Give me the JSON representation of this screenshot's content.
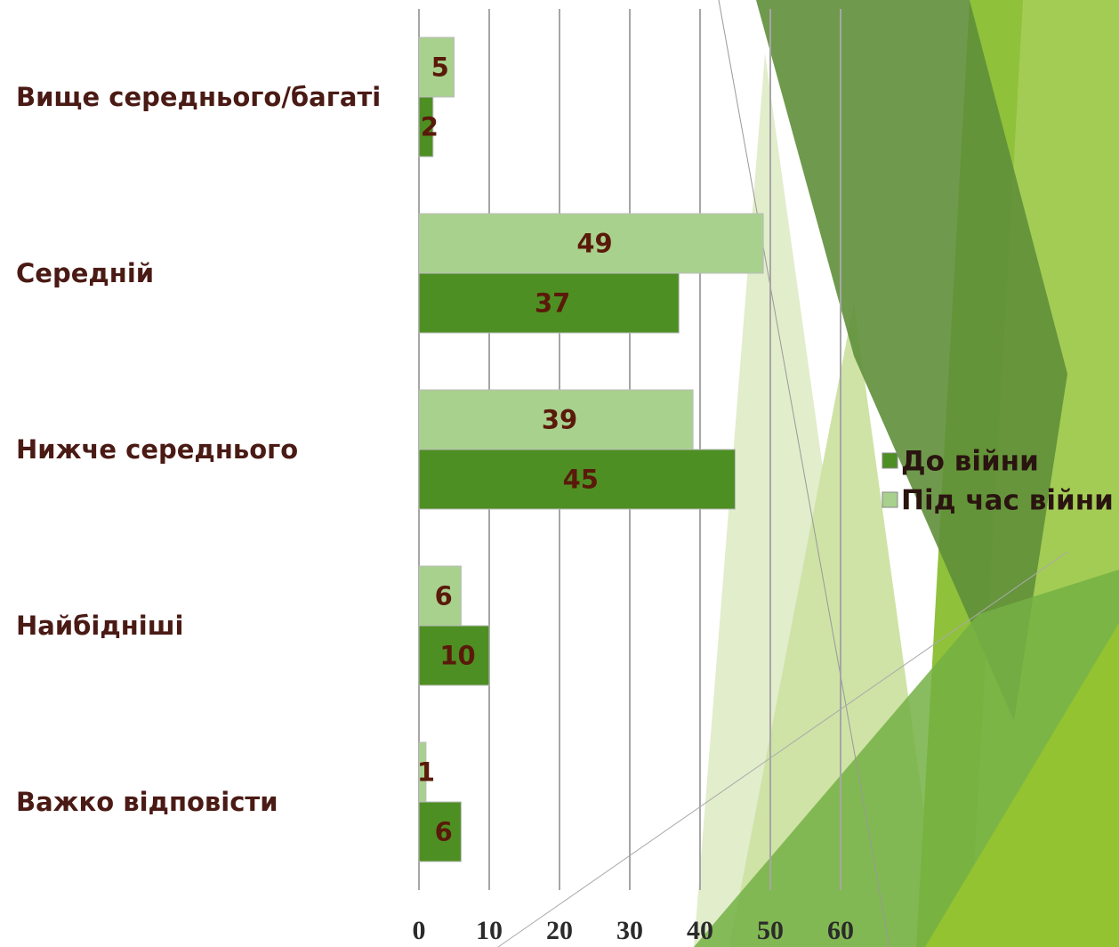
{
  "chart_data": {
    "type": "hbar",
    "categories": [
      "Вище середнього/багаті",
      "Середній",
      "Нижче середнього",
      "Найбідніші",
      "Важко відповісти"
    ],
    "series": [
      {
        "name": "До війни",
        "color": "#4e8f23",
        "values": [
          2,
          37,
          45,
          10,
          6
        ]
      },
      {
        "name": "Під час війни",
        "color": "#a9d18e",
        "values": [
          5,
          49,
          39,
          6,
          1
        ]
      }
    ],
    "xlim": [
      0,
      60
    ],
    "xticks": [
      0,
      10,
      20,
      30,
      40,
      50,
      60
    ],
    "grid": true,
    "legend": "right"
  }
}
